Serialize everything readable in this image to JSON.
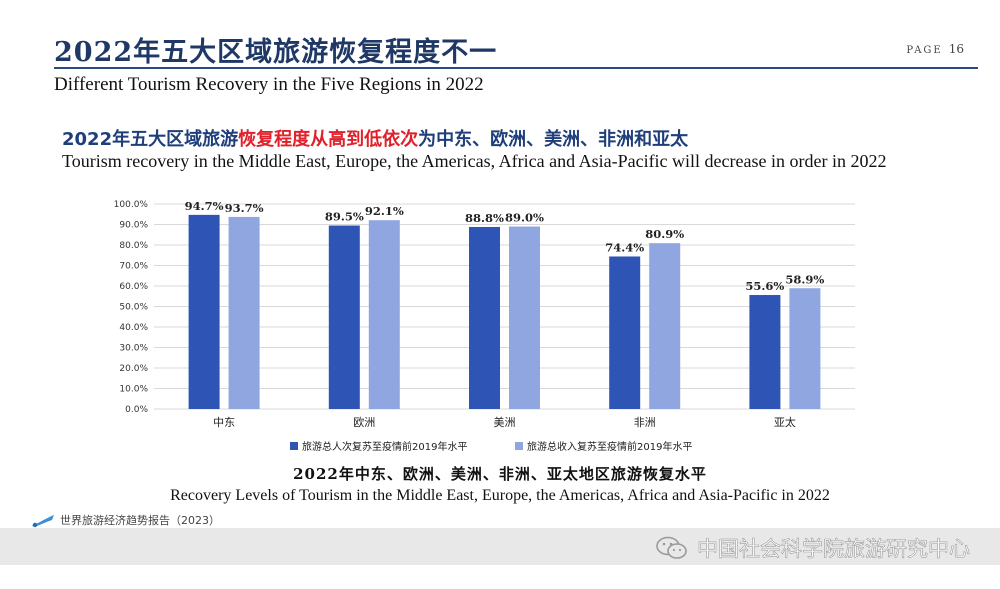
{
  "header": {
    "title_cn": "2022年五大区域旅游恢复程度不一",
    "page_label": "PAGE",
    "page_number": "16",
    "subtitle_en": "Different Tourism Recovery in the Five Regions in 2022"
  },
  "headline": {
    "cn_part1": "2022年五大区域旅游",
    "cn_part2": "恢复程度从高到低依次",
    "cn_part3": "为中东、欧洲、美洲、非洲和亚太",
    "en": "Tourism recovery in the Middle East, Europe, the Americas, Africa and Asia-Pacific will decrease in order in 2022"
  },
  "chart_data": {
    "type": "bar",
    "categories": [
      "中东",
      "欧洲",
      "美洲",
      "非洲",
      "亚太"
    ],
    "series": [
      {
        "name": "旅游总人次复苏至疫情前2019年水平",
        "values": [
          94.7,
          89.5,
          88.8,
          74.4,
          55.6
        ],
        "color": "#2e55b5"
      },
      {
        "name": "旅游总收入复苏至疫情前2019年水平",
        "values": [
          93.7,
          92.1,
          89.0,
          80.9,
          58.9
        ],
        "color": "#8fa6e0"
      }
    ],
    "value_labels": [
      [
        "94.7%",
        "89.5%",
        "88.8%",
        "74.4%",
        "55.6%"
      ],
      [
        "93.7%",
        "92.1%",
        "89.0%",
        "80.9%",
        "58.9%"
      ]
    ],
    "y_ticks": [
      "0.0%",
      "10.0%",
      "20.0%",
      "30.0%",
      "40.0%",
      "50.0%",
      "60.0%",
      "70.0%",
      "80.0%",
      "90.0%",
      "100.0%"
    ],
    "ylim": [
      0,
      100
    ],
    "grid": true,
    "legend_position": "bottom"
  },
  "caption": {
    "cn": "2022年中东、欧洲、美洲、非洲、亚太地区旅游恢复水平",
    "en": "Recovery Levels of Tourism in the Middle East, Europe, the Americas, Africa and Asia-Pacific in 2022"
  },
  "footer": {
    "report_source": "世界旅游经济趋势报告（2023）",
    "watermark": "中国社会科学院旅游研究中心",
    "logo_icon": "pen-logo-icon",
    "wechat_icon": "wechat-icon"
  }
}
